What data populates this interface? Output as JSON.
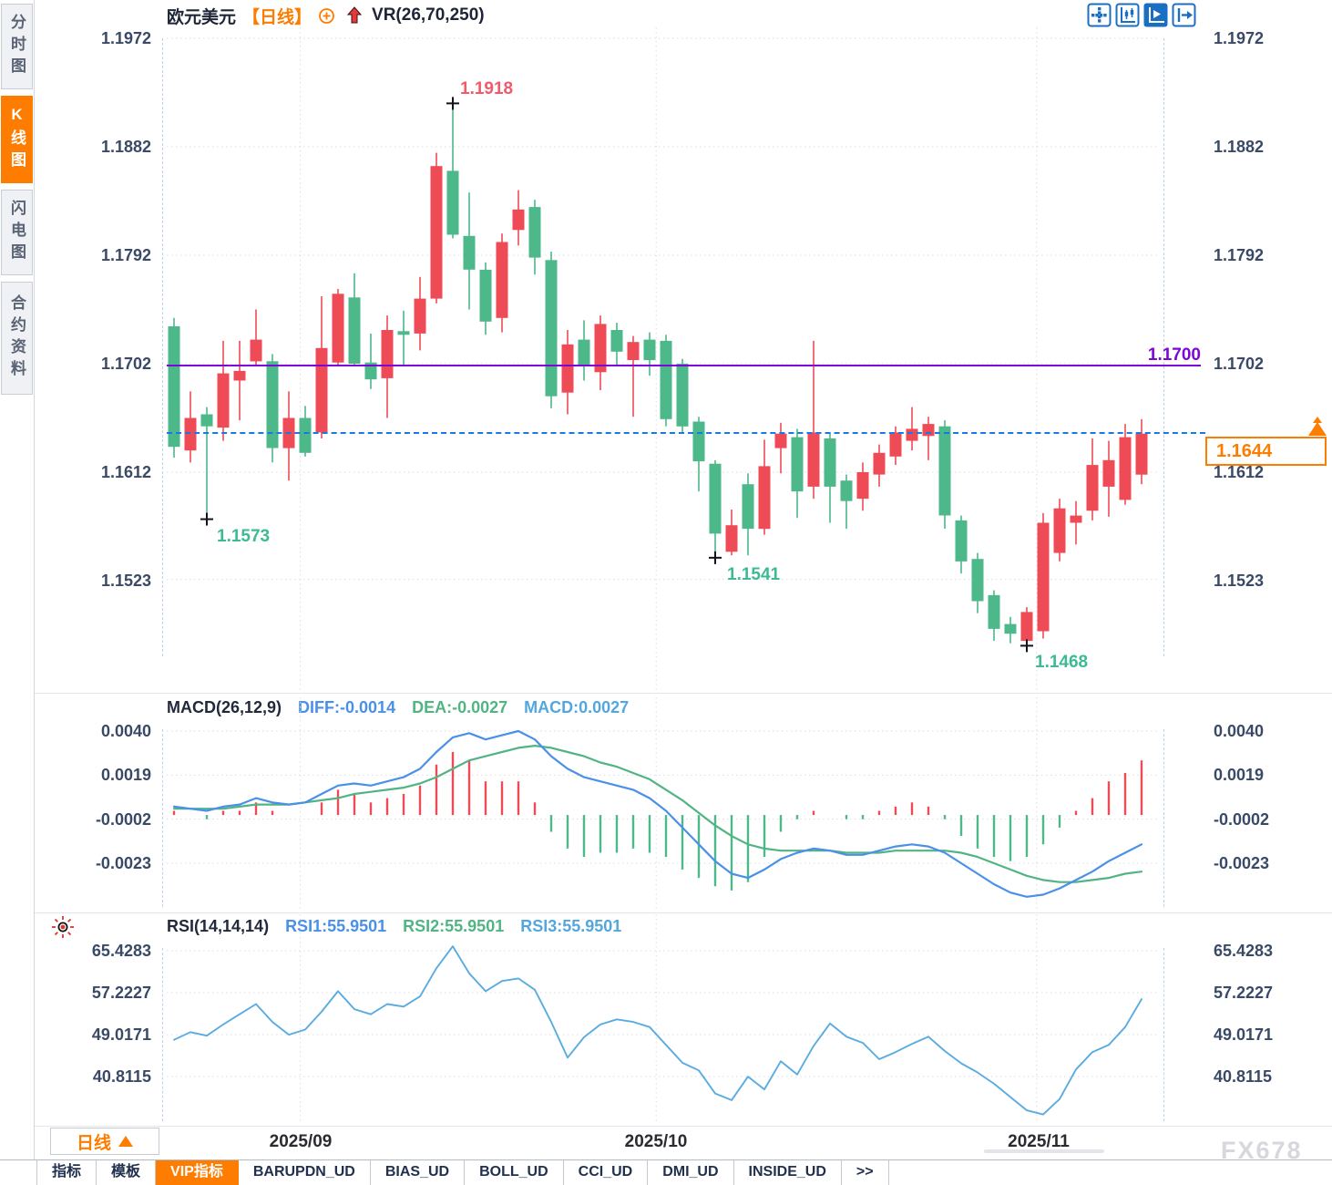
{
  "sidebar": {
    "tabs": [
      {
        "label": "分时图",
        "active": false
      },
      {
        "label": "K线图",
        "active": true
      },
      {
        "label": "闪电图",
        "active": false
      },
      {
        "label": "合约资料",
        "active": false
      }
    ]
  },
  "header": {
    "symbol": "欧元美元",
    "period_tag": "【日线】",
    "indicator_label": "VR(26,70,250)"
  },
  "annotations": {
    "high_label": "1.1918",
    "low1_label": "1.1573",
    "low2_label": "1.1541",
    "low3_label": "1.1468",
    "hline_label": "1.1700",
    "last_price_label": "1.1644"
  },
  "macd": {
    "title": "MACD(26,12,9)",
    "diff_label": "DIFF:-0.0014",
    "dea_label": "DEA:-0.0027",
    "macd_label": "MACD:0.0027",
    "axis": [
      "0.0040",
      "0.0019",
      "-0.0002",
      "-0.0023"
    ]
  },
  "rsi": {
    "title": "RSI(14,14,14)",
    "rsi1_label": "RSI1:55.9501",
    "rsi2_label": "RSI2:55.9501",
    "rsi3_label": "RSI3:55.9501",
    "axis": [
      "65.4283",
      "57.2227",
      "49.0171",
      "40.8115"
    ]
  },
  "xaxis": {
    "month_labels": [
      "2025/09",
      "2025/10",
      "2025/11"
    ],
    "period_label": "日线"
  },
  "bottom_tabs": [
    "指标",
    "模板",
    "VIP指标",
    "BARUPDN_UD",
    "BIAS_UD",
    "BOLL_UD",
    "CCI_UD",
    "DMI_UD",
    "INSIDE_UD",
    ">>"
  ],
  "watermark": "FX678",
  "colors": {
    "up": "#ef4b57",
    "down": "#4db88a",
    "accent_orange": "#fe7c00",
    "purple": "#7d05d8",
    "dashed_blue": "#1778e8",
    "diff_blue": "#4a90e8",
    "dea_green": "#52b483",
    "macd_lightblue": "#53a6de",
    "rsi_line": "#5aace0",
    "icon_blue": "#1b6fc2",
    "high_label": "#f2596b",
    "low_label": "#3cba93"
  },
  "chart_data": [
    {
      "type": "candlestick",
      "title": "欧元美元 日线",
      "y_ticks": [
        "1.1972",
        "1.1882",
        "1.1792",
        "1.1702",
        "1.1612",
        "1.1523"
      ],
      "y_tick_values": [
        1.1972,
        1.1882,
        1.1792,
        1.1702,
        1.1612,
        1.1523
      ],
      "ylim": [
        1.143,
        1.1981
      ],
      "hlines": [
        {
          "value": 1.17,
          "style": "solid",
          "color": "#7d05d8",
          "label": "1.1700"
        },
        {
          "value": 1.1644,
          "style": "dashed",
          "color": "#1778e8",
          "label": "1.1644"
        }
      ],
      "x_month_labels": [
        "2025/09",
        "2025/10",
        "2025/11"
      ],
      "month_start_indices": [
        7.7,
        29.4,
        52.6
      ],
      "markers": [
        {
          "index": 17,
          "price": 1.1918,
          "label": "1.1918"
        },
        {
          "index": 2,
          "price": 1.1573,
          "label": "1.1573"
        },
        {
          "index": 33,
          "price": 1.1541,
          "label": "1.1541"
        },
        {
          "index": 52,
          "price": 1.1468,
          "label": "1.1468"
        }
      ],
      "candles": [
        [
          1.1733,
          1.174,
          1.1624,
          1.1633
        ],
        [
          1.163,
          1.1679,
          1.162,
          1.1657
        ],
        [
          1.166,
          1.1666,
          1.1573,
          1.165
        ],
        [
          1.1649,
          1.1721,
          1.1638,
          1.1694
        ],
        [
          1.1688,
          1.1721,
          1.1655,
          1.1696
        ],
        [
          1.1704,
          1.1747,
          1.17,
          1.1722
        ],
        [
          1.1704,
          1.171,
          1.162,
          1.1632
        ],
        [
          1.1632,
          1.1679,
          1.1605,
          1.1657
        ],
        [
          1.1657,
          1.1667,
          1.1625,
          1.1628
        ],
        [
          1.1645,
          1.1758,
          1.164,
          1.1715
        ],
        [
          1.1703,
          1.1764,
          1.17,
          1.176
        ],
        [
          1.1757,
          1.1777,
          1.17,
          1.1702
        ],
        [
          1.1703,
          1.1727,
          1.1681,
          1.1689
        ],
        [
          1.169,
          1.1742,
          1.1657,
          1.173
        ],
        [
          1.1729,
          1.1746,
          1.17,
          1.1726
        ],
        [
          1.1727,
          1.1774,
          1.1713,
          1.1756
        ],
        [
          1.1756,
          1.1877,
          1.1752,
          1.1866
        ],
        [
          1.1862,
          1.1918,
          1.1806,
          1.1809
        ],
        [
          1.1808,
          1.1844,
          1.1747,
          1.178
        ],
        [
          1.178,
          1.1786,
          1.1726,
          1.1737
        ],
        [
          1.174,
          1.181,
          1.1728,
          1.1803
        ],
        [
          1.1813,
          1.1846,
          1.18,
          1.183
        ],
        [
          1.1832,
          1.1838,
          1.1776,
          1.179
        ],
        [
          1.1788,
          1.1795,
          1.1665,
          1.1675
        ],
        [
          1.1678,
          1.173,
          1.166,
          1.1718
        ],
        [
          1.1722,
          1.1738,
          1.1688,
          1.17
        ],
        [
          1.1695,
          1.1742,
          1.168,
          1.1735
        ],
        [
          1.173,
          1.1736,
          1.17,
          1.1712
        ],
        [
          1.1705,
          1.1725,
          1.1658,
          1.172
        ],
        [
          1.1722,
          1.1728,
          1.1692,
          1.1705
        ],
        [
          1.1721,
          1.1726,
          1.165,
          1.1656
        ],
        [
          1.1702,
          1.1706,
          1.1644,
          1.165
        ],
        [
          1.1654,
          1.1658,
          1.1596,
          1.1621
        ],
        [
          1.1619,
          1.1622,
          1.1541,
          1.1561
        ],
        [
          1.1546,
          1.1581,
          1.1543,
          1.1568
        ],
        [
          1.1602,
          1.1611,
          1.1543,
          1.1565
        ],
        [
          1.1565,
          1.1639,
          1.156,
          1.1617
        ],
        [
          1.1632,
          1.1653,
          1.1611,
          1.1644
        ],
        [
          1.1641,
          1.1648,
          1.1574,
          1.1596
        ],
        [
          1.16,
          1.1721,
          1.159,
          1.1645
        ],
        [
          1.164,
          1.1645,
          1.157,
          1.16
        ],
        [
          1.1605,
          1.161,
          1.1565,
          1.1588
        ],
        [
          1.159,
          1.162,
          1.158,
          1.1612
        ],
        [
          1.161,
          1.1635,
          1.16,
          1.1628
        ],
        [
          1.1625,
          1.165,
          1.1618,
          1.1645
        ],
        [
          1.1638,
          1.1666,
          1.163,
          1.1648
        ],
        [
          1.1642,
          1.1658,
          1.1622,
          1.1652
        ],
        [
          1.165,
          1.1655,
          1.1565,
          1.1576
        ],
        [
          1.1572,
          1.1576,
          1.1528,
          1.1538
        ],
        [
          1.154,
          1.1545,
          1.1495,
          1.1505
        ],
        [
          1.151,
          1.1514,
          1.1472,
          1.1482
        ],
        [
          1.1486,
          1.1492,
          1.147,
          1.1478
        ],
        [
          1.1472,
          1.15,
          1.1468,
          1.1496
        ],
        [
          1.148,
          1.1578,
          1.1474,
          1.157
        ],
        [
          1.1545,
          1.159,
          1.1538,
          1.1582
        ],
        [
          1.157,
          1.1588,
          1.1552,
          1.1576
        ],
        [
          1.158,
          1.164,
          1.1572,
          1.1618
        ],
        [
          1.16,
          1.1638,
          1.1575,
          1.1622
        ],
        [
          1.1589,
          1.1652,
          1.1585,
          1.1641
        ],
        [
          1.161,
          1.1656,
          1.1602,
          1.1644
        ]
      ]
    },
    {
      "type": "bar",
      "title": "MACD(26,12,9)",
      "axis_values": [
        0.004,
        0.0019,
        -0.0002,
        -0.0023
      ],
      "ylim": [
        -0.0046,
        0.0056
      ],
      "histogram": [
        0.0002,
        0.0,
        -0.0002,
        0.0002,
        0.0002,
        0.0006,
        0.0002,
        0.0,
        0.0,
        0.0006,
        0.0012,
        0.001,
        0.0006,
        0.0008,
        0.001,
        0.0014,
        0.0024,
        0.003,
        0.0026,
        0.0016,
        0.0016,
        0.0016,
        0.0006,
        -0.0008,
        -0.0016,
        -0.002,
        -0.0018,
        -0.0018,
        -0.0016,
        -0.0018,
        -0.002,
        -0.0026,
        -0.003,
        -0.0034,
        -0.0036,
        -0.0032,
        -0.002,
        -0.0008,
        -0.0002,
        0.0002,
        0.0,
        -0.0002,
        -0.0002,
        0.0002,
        0.0004,
        0.0006,
        0.0004,
        -0.0002,
        -0.001,
        -0.0016,
        -0.002,
        -0.0022,
        -0.002,
        -0.0014,
        -0.0006,
        0.0002,
        0.0008,
        0.0016,
        0.002,
        0.0026
      ],
      "diff": [
        0.0004,
        0.0003,
        0.0002,
        0.0004,
        0.0005,
        0.0008,
        0.0006,
        0.0005,
        0.0006,
        0.001,
        0.0014,
        0.0015,
        0.0014,
        0.0016,
        0.0018,
        0.0022,
        0.003,
        0.0037,
        0.0039,
        0.0036,
        0.0038,
        0.004,
        0.0036,
        0.0028,
        0.0022,
        0.0018,
        0.0016,
        0.0014,
        0.0012,
        0.0008,
        0.0002,
        -0.0006,
        -0.0014,
        -0.0022,
        -0.0028,
        -0.003,
        -0.0026,
        -0.0021,
        -0.0018,
        -0.0016,
        -0.0017,
        -0.0019,
        -0.0019,
        -0.0017,
        -0.0015,
        -0.0014,
        -0.0015,
        -0.0018,
        -0.0023,
        -0.0028,
        -0.0033,
        -0.0037,
        -0.0039,
        -0.0038,
        -0.0035,
        -0.0031,
        -0.0027,
        -0.0022,
        -0.0018,
        -0.0014
      ],
      "dea": [
        0.0003,
        0.0003,
        0.0003,
        0.0003,
        0.0004,
        0.0005,
        0.0005,
        0.0005,
        0.0006,
        0.0007,
        0.0008,
        0.001,
        0.0011,
        0.0012,
        0.0013,
        0.0015,
        0.0018,
        0.0022,
        0.0026,
        0.0028,
        0.003,
        0.0032,
        0.0033,
        0.0032,
        0.003,
        0.0028,
        0.0025,
        0.0023,
        0.002,
        0.0017,
        0.0012,
        0.0007,
        0.0001,
        -0.0005,
        -0.001,
        -0.0014,
        -0.0016,
        -0.0017,
        -0.0017,
        -0.0017,
        -0.0017,
        -0.0018,
        -0.0018,
        -0.0018,
        -0.0017,
        -0.0017,
        -0.0017,
        -0.0017,
        -0.0018,
        -0.002,
        -0.0023,
        -0.0026,
        -0.0029,
        -0.0031,
        -0.0032,
        -0.0032,
        -0.0031,
        -0.003,
        -0.0028,
        -0.0027
      ]
    },
    {
      "type": "line",
      "title": "RSI(14,14,14)",
      "axis_values": [
        65.4283,
        57.2227,
        49.0171,
        40.8115
      ],
      "ylim": [
        31.7,
        72.6
      ],
      "values": [
        48.0,
        49.5,
        48.8,
        51.0,
        53.0,
        55.0,
        51.5,
        49.0,
        50.0,
        53.5,
        57.5,
        54.0,
        53.0,
        55.0,
        54.5,
        56.5,
        62.0,
        66.3,
        61.0,
        57.5,
        59.5,
        60.0,
        57.8,
        51.5,
        44.5,
        48.5,
        51.0,
        52.0,
        51.5,
        50.5,
        47.0,
        43.5,
        42.0,
        37.5,
        36.2,
        40.8,
        38.3,
        43.8,
        41.2,
        46.8,
        51.2,
        48.6,
        47.4,
        44.2,
        45.6,
        47.2,
        48.6,
        45.8,
        43.4,
        41.6,
        39.4,
        36.8,
        34.2,
        33.4,
        36.4,
        42.2,
        45.6,
        47.0,
        50.5,
        55.95
      ]
    }
  ]
}
